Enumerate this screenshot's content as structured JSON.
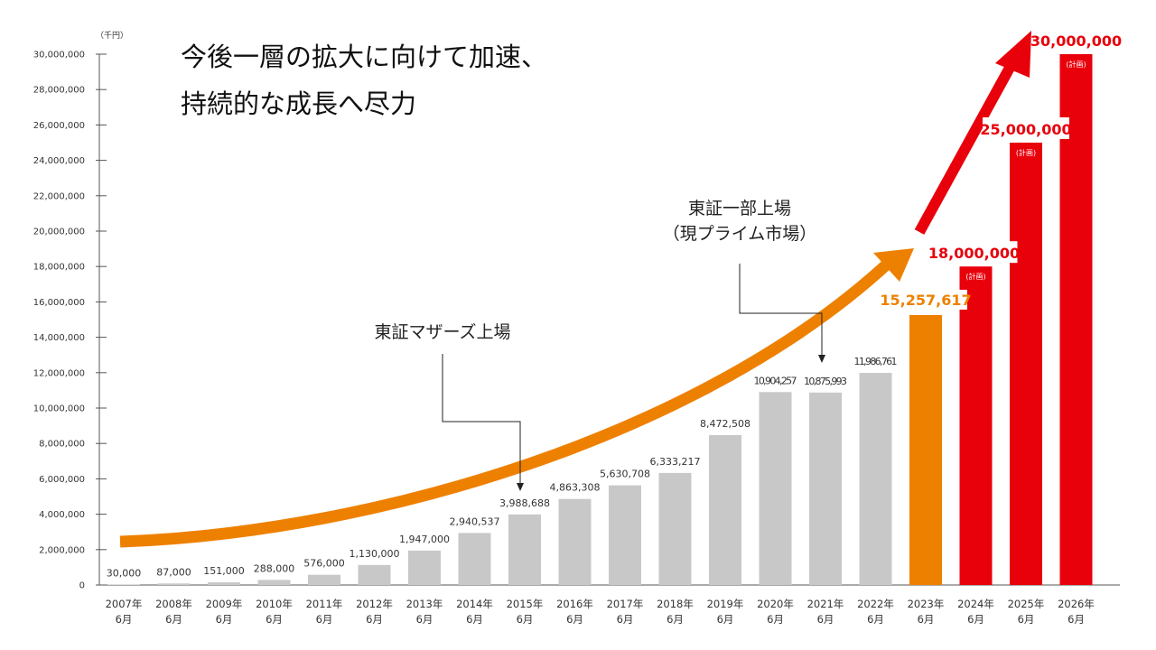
{
  "headline": {
    "line1": "今後一層の拡大に向けて加速、",
    "line2": "持続的な成長へ尽力"
  },
  "annotations": {
    "mothers": "東証マザーズ上場",
    "first_section_line1": "東証一部上場",
    "first_section_line2": "（現プライム市場）"
  },
  "colors": {
    "actual": "#c8c8c8",
    "actual_2023": "#ee8000",
    "plan": "#e8000b",
    "curve": "#ee8000",
    "arrow": "#e8000b",
    "text": "#333333"
  },
  "chart_data": {
    "type": "bar",
    "unit_label": "（千円）",
    "ylim": [
      0,
      30000000
    ],
    "y_ticks": [
      "0",
      "2,000,000",
      "4,000,000",
      "6,000,000",
      "8,000,000",
      "10,000,000",
      "12,000,000",
      "14,000,000",
      "16,000,000",
      "18,000,000",
      "20,000,000",
      "22,000,000",
      "24,000,000",
      "26,000,000",
      "28,000,000",
      "30,000,000"
    ],
    "categories": [
      {
        "year": "2007年",
        "month": "6月"
      },
      {
        "year": "2008年",
        "month": "6月"
      },
      {
        "year": "2009年",
        "month": "6月"
      },
      {
        "year": "2010年",
        "month": "6月"
      },
      {
        "year": "2011年",
        "month": "6月"
      },
      {
        "year": "2012年",
        "month": "6月"
      },
      {
        "year": "2013年",
        "month": "6月"
      },
      {
        "year": "2014年",
        "month": "6月"
      },
      {
        "year": "2015年",
        "month": "6月"
      },
      {
        "year": "2016年",
        "month": "6月"
      },
      {
        "year": "2017年",
        "month": "6月"
      },
      {
        "year": "2018年",
        "month": "6月"
      },
      {
        "year": "2019年",
        "month": "6月"
      },
      {
        "year": "2020年",
        "month": "6月"
      },
      {
        "year": "2021年",
        "month": "6月"
      },
      {
        "year": "2022年",
        "month": "6月"
      },
      {
        "year": "2023年",
        "month": "6月"
      },
      {
        "year": "2024年",
        "month": "6月"
      },
      {
        "year": "2025年",
        "month": "6月"
      },
      {
        "year": "2026年",
        "month": "6月"
      }
    ],
    "values": [
      30000,
      87000,
      151000,
      288000,
      576000,
      1130000,
      1947000,
      2940537,
      3988688,
      4863308,
      5630708,
      6333217,
      8472508,
      10904257,
      10875993,
      11986761,
      15257617,
      18000000,
      25000000,
      30000000
    ],
    "value_labels": [
      "30,000",
      "87,000",
      "151,000",
      "288,000",
      "576,000",
      "1,130,000",
      "1,947,000",
      "2,940,537",
      "3,988,688",
      "4,863,308",
      "5,630,708",
      "6,333,217",
      "8,472,508",
      "10,904,257",
      "10,875,993",
      "11,986,761",
      "15,257,617",
      "18,000,000",
      "25,000,000",
      "30,000,000"
    ],
    "status": [
      "actual",
      "actual",
      "actual",
      "actual",
      "actual",
      "actual",
      "actual",
      "actual",
      "actual",
      "actual",
      "actual",
      "actual",
      "actual",
      "actual",
      "actual",
      "actual",
      "actual-latest",
      "plan",
      "plan",
      "plan"
    ],
    "plan_label": "(計画)",
    "grid": false
  }
}
